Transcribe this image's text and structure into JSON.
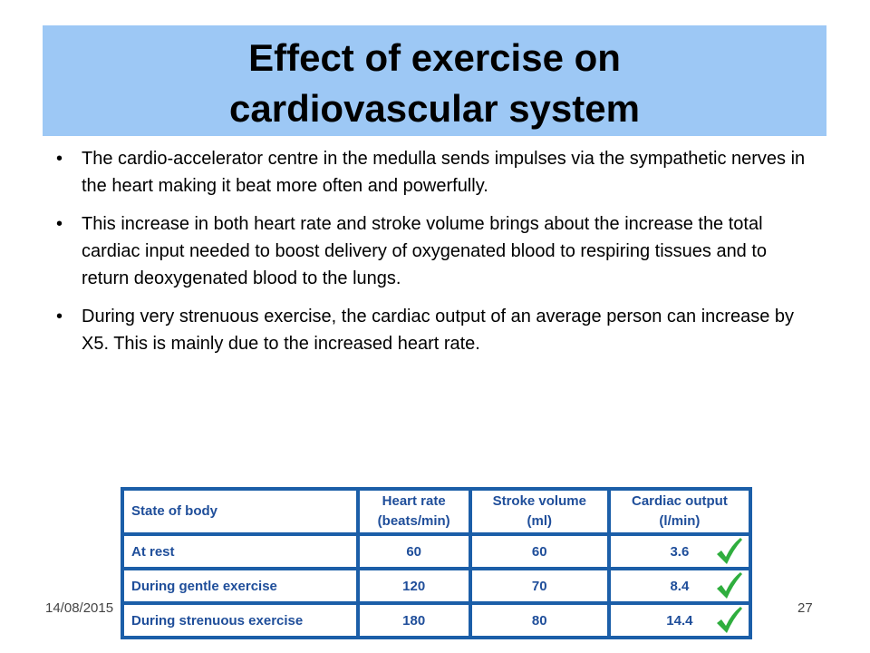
{
  "title_lines": [
    "Effect of exercise on",
    "cardiovascular system"
  ],
  "bullets": [
    "The cardio-accelerator centre in the medulla sends impulses via the sympathetic nerves in the heart making it beat more often and powerfully.",
    "This increase in both heart rate and stroke volume brings about the increase the total cardiac input needed to boost delivery of oxygenated blood to respiring tissues and to return deoxygenated blood to the lungs.",
    "During very strenuous exercise, the cardiac output of an average person can increase by X5. This is mainly due to the increased heart rate."
  ],
  "table": {
    "header": [
      [
        "State of body"
      ],
      [
        "Heart rate",
        "(beats/min)"
      ],
      [
        "Stroke volume",
        "(ml)"
      ],
      [
        "Cardiac output",
        "(l/min)"
      ]
    ],
    "rows": [
      [
        "At rest",
        60,
        60,
        3.6
      ],
      [
        "During gentle exercise",
        120,
        70,
        8.4
      ],
      [
        "During strenuous exercise",
        180,
        80,
        14.4
      ]
    ]
  },
  "footer": {
    "date": "14/08/2015",
    "page": "27"
  }
}
